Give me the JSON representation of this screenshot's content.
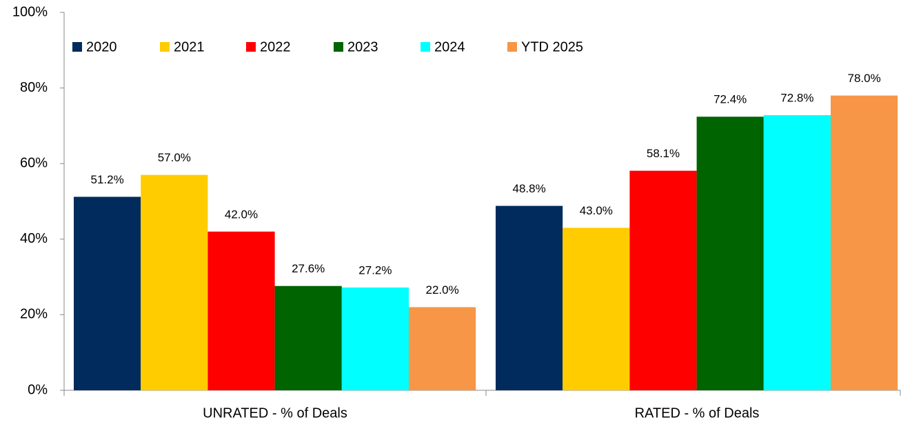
{
  "chart_data": {
    "type": "bar",
    "categories": [
      "UNRATED - % of Deals",
      "RATED - % of Deals"
    ],
    "series": [
      {
        "name": "2020",
        "color": "#002b5c",
        "values": [
          51.2,
          48.8
        ],
        "value_labels": [
          "51.2%",
          "48.8%"
        ]
      },
      {
        "name": "2021",
        "color": "#ffcc00",
        "values": [
          57.0,
          43.0
        ],
        "value_labels": [
          "57.0%",
          "43.0%"
        ]
      },
      {
        "name": "2022",
        "color": "#ff0000",
        "values": [
          42.0,
          58.1
        ],
        "value_labels": [
          "42.0%",
          "58.1%"
        ]
      },
      {
        "name": "2023",
        "color": "#006400",
        "values": [
          27.6,
          72.4
        ],
        "value_labels": [
          "27.6%",
          "72.4%"
        ]
      },
      {
        "name": "2024",
        "color": "#00ffff",
        "values": [
          27.2,
          72.8
        ],
        "value_labels": [
          "27.2%",
          "72.8%"
        ]
      },
      {
        "name": "YTD 2025",
        "color": "#f79646",
        "values": [
          22.0,
          78.0
        ],
        "value_labels": [
          "22.0%",
          "78.0%"
        ]
      }
    ],
    "ylim": [
      0,
      100
    ],
    "yticks": [
      {
        "value": 0,
        "label": "0%"
      },
      {
        "value": 20,
        "label": "20%"
      },
      {
        "value": 40,
        "label": "40%"
      },
      {
        "value": 60,
        "label": "60%"
      },
      {
        "value": 80,
        "label": "80%"
      },
      {
        "value": 100,
        "label": "100%"
      }
    ],
    "grid": false,
    "legend": "top-left"
  }
}
